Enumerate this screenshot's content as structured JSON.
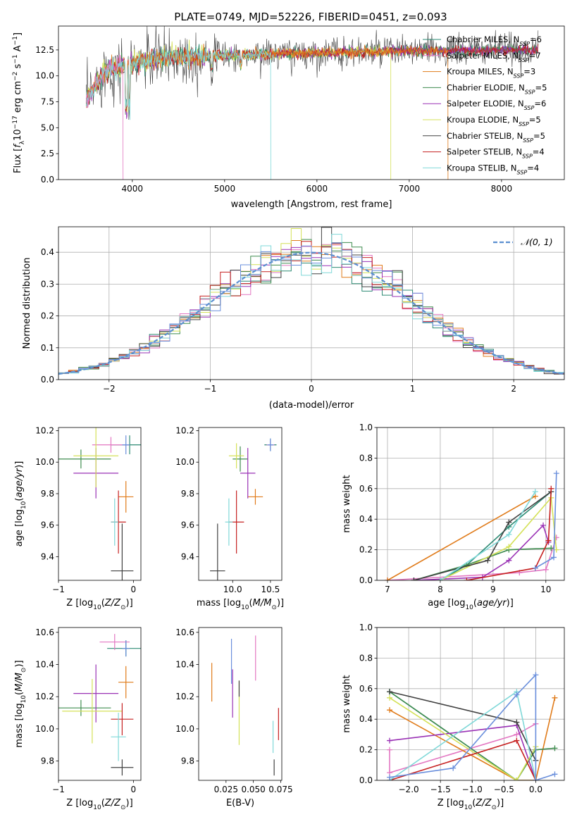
{
  "figure": {
    "title": "PLATE=0749, MJD=52226, FIBERID=0451, z=0.093"
  },
  "colors": {
    "Chabrier MILES": "#2e8b74",
    "Salpeter MILES": "#e377c2",
    "Kroupa MILES": "#e07b1a",
    "Chabrier ELODIE": "#3f8c4f",
    "Salpeter ELODIE": "#9a32b5",
    "Kroupa ELODIE": "#d4e157",
    "Chabrier STELIB": "#404040",
    "Salpeter STELIB": "#c62020",
    "Kroupa STELIB": "#7fd8d8",
    "extra_blue": "#6a8fdc",
    "normal_line": "#5b8fd0"
  },
  "chart_data": [
    {
      "id": "spectrum",
      "type": "line",
      "title": "PLATE=0749, MJD=52226, FIBERID=0451, z=0.093",
      "xlabel": "wavelength [Angstrom, rest frame]",
      "ylabel": "Flux [f_λ 10^-17 erg cm^-2 s^-1 A^-1]",
      "xlim": [
        3200,
        8680
      ],
      "ylim": [
        0,
        14.8
      ],
      "xticks": [
        4000,
        5000,
        6000,
        7000,
        8000
      ],
      "yticks": [
        0.0,
        2.5,
        5.0,
        7.5,
        10.0,
        12.5
      ],
      "grid": false,
      "legend_position": "right",
      "series": [
        {
          "name": "Chabrier MILES, N_SSP=6"
        },
        {
          "name": "Salpeter MILES, N_SSP=7"
        },
        {
          "name": "Kroupa MILES, N_SSP=3"
        },
        {
          "name": "Chabrier ELODIE, N_SSP=5"
        },
        {
          "name": "Salpeter ELODIE, N_SSP=6"
        },
        {
          "name": "Kroupa ELODIE, N_SSP=5"
        },
        {
          "name": "Chabrier STELIB, N_SSP=5"
        },
        {
          "name": "Salpeter STELIB, N_SSP=4"
        },
        {
          "name": "Kroupa STELIB, N_SSP=4"
        }
      ],
      "data_shape": {
        "wavelength_range": [
          3500,
          8400
        ],
        "continuum_points": [
          [
            3500,
            7.6
          ],
          [
            3700,
            10.5
          ],
          [
            4000,
            11.2
          ],
          [
            4400,
            11.8
          ],
          [
            5000,
            12.0
          ],
          [
            5500,
            12.1
          ],
          [
            6000,
            12.2
          ],
          [
            6500,
            12.3
          ],
          [
            7000,
            12.4
          ],
          [
            7500,
            12.4
          ],
          [
            8000,
            12.5
          ],
          [
            8400,
            12.5
          ]
        ]
      }
    },
    {
      "id": "residuals",
      "type": "bar",
      "xlabel": "(data-model)/error",
      "ylabel": "Normed distribution",
      "xlim": [
        -2.5,
        2.5
      ],
      "ylim": [
        0,
        0.48
      ],
      "xticks": [
        -2,
        -1,
        0,
        1,
        2
      ],
      "yticks": [
        0.0,
        0.1,
        0.2,
        0.3,
        0.4
      ],
      "grid": true,
      "legend": "𝒩(0, 1)",
      "legend_position": "top-right",
      "bin_width": 0.1,
      "bin_range": [
        -2.5,
        2.5
      ],
      "normal": {
        "mu": 0,
        "sigma": 1
      }
    },
    {
      "id": "age_vs_Z",
      "type": "scatter",
      "xlabel": "Z [log10(Z/Z⊙)]",
      "ylabel": "age  [log10(age/yr)]",
      "xlim": [
        -1.0,
        0.1
      ],
      "ylim": [
        9.25,
        10.22
      ],
      "xticks": [
        -1,
        0
      ],
      "yticks": [
        9.4,
        9.6,
        9.8,
        10.0,
        10.2
      ],
      "points": [
        {
          "model": "Chabrier MILES",
          "x": -0.05,
          "xerr": 0.25,
          "y": 10.11,
          "yerr": 0.06
        },
        {
          "model": "Salpeter MILES",
          "x": -0.3,
          "xerr": 0.25,
          "y": 10.11,
          "yerr": 0.05
        },
        {
          "model": "Kroupa MILES",
          "x": -0.1,
          "xerr": 0.1,
          "y": 9.78,
          "yerr": 0.1
        },
        {
          "model": "Chabrier ELODIE",
          "x": -0.7,
          "xerr": 0.4,
          "y": 10.02,
          "yerr": 0.06
        },
        {
          "model": "Salpeter ELODIE",
          "x": -0.5,
          "xerr": 0.3,
          "y": 9.93,
          "yerr": 0.16
        },
        {
          "model": "Kroupa ELODIE",
          "x": -0.5,
          "xerr": 0.3,
          "y": 10.04,
          "yerr": 0.2
        },
        {
          "model": "Chabrier STELIB",
          "x": -0.15,
          "xerr": 0.15,
          "y": 9.31,
          "yerr": 0.3
        },
        {
          "model": "Salpeter STELIB",
          "x": -0.2,
          "xerr": 0.1,
          "y": 9.62,
          "yerr": 0.2
        },
        {
          "model": "Kroupa STELIB",
          "x": -0.25,
          "xerr": 0.05,
          "y": 9.62,
          "yerr": 0.15
        },
        {
          "model": "extra_blue",
          "x": -0.1,
          "xerr": 0.05,
          "y": 10.11,
          "yerr": 0.06
        }
      ]
    },
    {
      "id": "age_vs_mass",
      "type": "scatter",
      "xlabel": "mass [log10(M/M⊙)]",
      "ylabel": "",
      "xlim": [
        9.55,
        10.65
      ],
      "ylim": [
        9.25,
        10.22
      ],
      "xticks": [
        10.0,
        10.5
      ],
      "yticks": [
        9.4,
        9.6,
        9.8,
        10.0,
        10.2
      ],
      "points": [
        {
          "model": "Chabrier MILES",
          "x": 10.5,
          "xerr": 0.08,
          "y": 10.11,
          "yerr": 0.04
        },
        {
          "model": "Salpeter MILES",
          "x": 10.5,
          "xerr": 0.05,
          "y": 10.11,
          "yerr": 0.03
        },
        {
          "model": "Kroupa MILES",
          "x": 10.3,
          "xerr": 0.1,
          "y": 9.78,
          "yerr": 0.05
        },
        {
          "model": "Chabrier ELODIE",
          "x": 10.1,
          "xerr": 0.1,
          "y": 10.02,
          "yerr": 0.08
        },
        {
          "model": "Salpeter ELODIE",
          "x": 10.2,
          "xerr": 0.1,
          "y": 9.93,
          "yerr": 0.16
        },
        {
          "model": "Kroupa ELODIE",
          "x": 10.05,
          "xerr": 0.1,
          "y": 10.04,
          "yerr": 0.08
        },
        {
          "model": "Chabrier STELIB",
          "x": 9.8,
          "xerr": 0.1,
          "y": 9.31,
          "yerr": 0.3
        },
        {
          "model": "Salpeter STELIB",
          "x": 10.05,
          "xerr": 0.1,
          "y": 9.62,
          "yerr": 0.2
        },
        {
          "model": "Kroupa STELIB",
          "x": 9.95,
          "xerr": 0.05,
          "y": 9.62,
          "yerr": 0.15
        },
        {
          "model": "extra_blue",
          "x": 10.5,
          "xerr": 0.04,
          "y": 10.11,
          "yerr": 0.04
        }
      ]
    },
    {
      "id": "mass_weight_vs_age",
      "type": "line",
      "xlabel": "age  [log10(age/yr)]",
      "ylabel": "mass weight",
      "xlim": [
        6.8,
        10.35
      ],
      "ylim": [
        0,
        1.0
      ],
      "xticks": [
        7,
        8,
        9,
        10
      ],
      "yticks": [
        0.0,
        0.2,
        0.4,
        0.6,
        0.8,
        1.0
      ],
      "grid": true,
      "series": [
        {
          "model": "Chabrier MILES",
          "x": [
            8.0,
            8.5,
            9.3,
            10.1
          ],
          "y": [
            0.0,
            0.1,
            0.35,
            0.58
          ]
        },
        {
          "model": "Salpeter MILES",
          "x": [
            7.0,
            9.5,
            10.0,
            10.2
          ],
          "y": [
            0.0,
            0.05,
            0.07,
            0.28
          ]
        },
        {
          "model": "Kroupa MILES",
          "x": [
            7.0,
            9.8
          ],
          "y": [
            0.0,
            0.55
          ]
        },
        {
          "model": "Chabrier ELODIE",
          "x": [
            7.5,
            8.5,
            9.3,
            10.1
          ],
          "y": [
            0.0,
            0.1,
            0.2,
            0.21
          ]
        },
        {
          "model": "Salpeter ELODIE",
          "x": [
            7.5,
            8.8,
            9.3,
            9.95,
            10.05
          ],
          "y": [
            0.0,
            0.02,
            0.13,
            0.36,
            0.25
          ]
        },
        {
          "model": "Kroupa ELODIE",
          "x": [
            8.0,
            9.3,
            10.1,
            10.2
          ],
          "y": [
            0.0,
            0.22,
            0.54,
            0.2
          ]
        },
        {
          "model": "Chabrier STELIB",
          "x": [
            7.5,
            8.9,
            9.3,
            10.1
          ],
          "y": [
            0.0,
            0.13,
            0.38,
            0.58
          ]
        },
        {
          "model": "Salpeter STELIB",
          "x": [
            8.5,
            9.8,
            10.05,
            10.1
          ],
          "y": [
            0.0,
            0.08,
            0.26,
            0.6
          ]
        },
        {
          "model": "Kroupa STELIB",
          "x": [
            8.0,
            9.3,
            9.8
          ],
          "y": [
            0.0,
            0.3,
            0.58
          ]
        },
        {
          "model": "extra_blue",
          "x": [
            9.8,
            10.15,
            10.2
          ],
          "y": [
            0.08,
            0.15,
            0.7
          ]
        }
      ]
    },
    {
      "id": "mass_vs_Z",
      "type": "scatter",
      "xlabel": "Z [log10(Z/Z⊙)]",
      "ylabel": "mass [log10(M/M⊙)]",
      "xlim": [
        -1.0,
        0.1
      ],
      "ylim": [
        9.68,
        10.63
      ],
      "xticks": [
        -1,
        0
      ],
      "yticks": [
        9.8,
        10.0,
        10.2,
        10.4,
        10.6
      ],
      "points": [
        {
          "model": "Chabrier MILES",
          "x": -0.1,
          "xerr": 0.25,
          "y": 10.5,
          "yerr": 0.05
        },
        {
          "model": "Salpeter MILES",
          "x": -0.25,
          "xerr": 0.2,
          "y": 10.54,
          "yerr": 0.05
        },
        {
          "model": "Kroupa MILES",
          "x": -0.1,
          "xerr": 0.1,
          "y": 10.29,
          "yerr": 0.1
        },
        {
          "model": "Chabrier ELODIE",
          "x": -0.7,
          "xerr": 0.4,
          "y": 10.13,
          "yerr": 0.05
        },
        {
          "model": "Salpeter ELODIE",
          "x": -0.5,
          "xerr": 0.3,
          "y": 10.22,
          "yerr": 0.18
        },
        {
          "model": "Kroupa ELODIE",
          "x": -0.55,
          "xerr": 0.4,
          "y": 10.11,
          "yerr": 0.2
        },
        {
          "model": "Chabrier STELIB",
          "x": -0.15,
          "xerr": 0.15,
          "y": 9.76,
          "yerr": 0.05
        },
        {
          "model": "Salpeter STELIB",
          "x": -0.15,
          "xerr": 0.15,
          "y": 10.06,
          "yerr": 0.1
        },
        {
          "model": "Kroupa STELIB",
          "x": -0.2,
          "xerr": 0.1,
          "y": 9.95,
          "yerr": 0.15
        },
        {
          "model": "extra_blue",
          "x": -0.1,
          "xerr": 0.05,
          "y": 10.5,
          "yerr": 0.05
        }
      ]
    },
    {
      "id": "mass_vs_EBV",
      "type": "scatter",
      "xlabel": "E(B-V)",
      "ylabel": "",
      "xlim": [
        0.0,
        0.076
      ],
      "ylim": [
        9.68,
        10.63
      ],
      "xticks": [
        0.025,
        0.05,
        0.075
      ],
      "xticklabels": [
        "0.025",
        "0.050",
        "0.075"
      ],
      "yticks": [
        9.8,
        10.0,
        10.2,
        10.4,
        10.6
      ],
      "points": [
        {
          "model": "Kroupa MILES",
          "x": 0.012,
          "y": 10.29,
          "yerr": 0.12
        },
        {
          "model": "extra_blue",
          "x": 0.03,
          "y": 10.42,
          "yerr": 0.14
        },
        {
          "model": "Salpeter ELODIE",
          "x": 0.031,
          "y": 10.22,
          "yerr": 0.15
        },
        {
          "model": "Kroupa ELODIE",
          "x": 0.037,
          "y": 10.1,
          "yerr": 0.2
        },
        {
          "model": "Chabrier STELIB",
          "x": 0.037,
          "y": 10.25,
          "yerr": 0.05
        },
        {
          "model": "Salpeter MILES",
          "x": 0.052,
          "y": 10.44,
          "yerr": 0.14
        },
        {
          "model": "Kroupa STELIB",
          "x": 0.068,
          "y": 9.95,
          "yerr": 0.1
        },
        {
          "model": "Chabrier STELIB",
          "x": 0.069,
          "y": 9.76,
          "yerr": 0.05
        },
        {
          "model": "Salpeter STELIB",
          "x": 0.073,
          "y": 10.03,
          "yerr": 0.1
        }
      ]
    },
    {
      "id": "mass_weight_vs_Z",
      "type": "line",
      "xlabel": "Z [log10(Z/Z⊙)]",
      "ylabel": "mass weight",
      "xlim": [
        -2.5,
        0.45
      ],
      "ylim": [
        0,
        1.0
      ],
      "xticks": [
        -2.0,
        -1.5,
        -1.0,
        -0.5,
        0.0
      ],
      "yticks": [
        0.0,
        0.2,
        0.4,
        0.6,
        0.8,
        1.0
      ],
      "grid": true,
      "series": [
        {
          "model": "Chabrier MILES",
          "x": [
            -2.3,
            -0.3,
            0.0
          ],
          "y": [
            0.58,
            0.0,
            0.0
          ]
        },
        {
          "model": "Salpeter MILES",
          "x": [
            -2.3,
            -2.3,
            -0.3,
            0.0
          ],
          "y": [
            0.2,
            0.05,
            0.3,
            0.37
          ]
        },
        {
          "model": "Kroupa MILES",
          "x": [
            -2.3,
            -0.3,
            0.0,
            0.3
          ],
          "y": [
            0.46,
            0.0,
            0.0,
            0.54
          ]
        },
        {
          "model": "Chabrier ELODIE",
          "x": [
            -2.3,
            -0.3,
            0.0,
            0.3
          ],
          "y": [
            0.58,
            0.0,
            0.2,
            0.21
          ]
        },
        {
          "model": "Salpeter ELODIE",
          "x": [
            -2.3,
            -0.3,
            0.0
          ],
          "y": [
            0.26,
            0.36,
            0.0
          ]
        },
        {
          "model": "Kroupa ELODIE",
          "x": [
            -2.3,
            -0.3,
            0.0
          ],
          "y": [
            0.54,
            0.0,
            0.22
          ]
        },
        {
          "model": "Chabrier STELIB",
          "x": [
            -2.3,
            -0.3,
            0.0
          ],
          "y": [
            0.58,
            0.38,
            0.13
          ]
        },
        {
          "model": "Salpeter STELIB",
          "x": [
            -2.3,
            -0.3,
            0.0
          ],
          "y": [
            0.0,
            0.26,
            0.0
          ]
        },
        {
          "model": "Kroupa STELIB",
          "x": [
            -2.3,
            -0.3,
            0.0
          ],
          "y": [
            0.0,
            0.58,
            0.0
          ]
        },
        {
          "model": "extra_blue",
          "x": [
            -2.3,
            -1.3,
            -0.3,
            0.0,
            0.0,
            0.3
          ],
          "y": [
            0.02,
            0.08,
            0.56,
            0.69,
            0.0,
            0.04
          ]
        }
      ]
    }
  ]
}
